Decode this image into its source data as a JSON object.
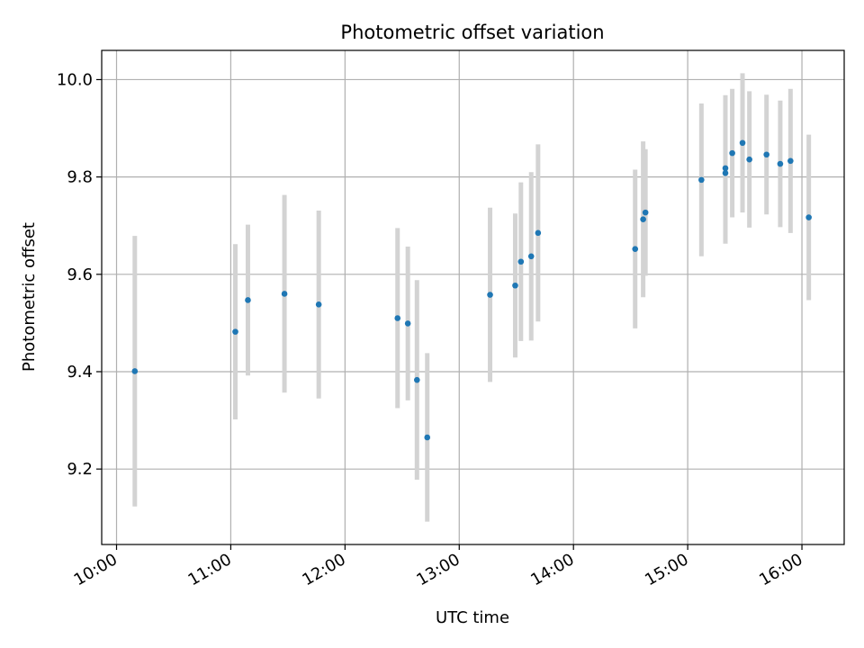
{
  "chart_data": {
    "type": "scatter",
    "title": "Photometric offset variation",
    "xlabel": "UTC time",
    "ylabel": "Photometric offset",
    "xlim_hours": [
      9.87,
      16.37
    ],
    "ylim": [
      9.045,
      10.06
    ],
    "x_ticks": [
      {
        "value": 10,
        "label": "10:00"
      },
      {
        "value": 11,
        "label": "11:00"
      },
      {
        "value": 12,
        "label": "12:00"
      },
      {
        "value": 13,
        "label": "13:00"
      },
      {
        "value": 14,
        "label": "14:00"
      },
      {
        "value": 15,
        "label": "15:00"
      },
      {
        "value": 16,
        "label": "16:00"
      }
    ],
    "y_ticks": [
      {
        "value": 9.2,
        "label": "9.2"
      },
      {
        "value": 9.4,
        "label": "9.4"
      },
      {
        "value": 9.6,
        "label": "9.6"
      },
      {
        "value": 9.8,
        "label": "9.8"
      },
      {
        "value": 10.0,
        "label": "10.0"
      }
    ],
    "grid": true,
    "point_color": "#1f77b4",
    "errorbar_color": "#d3d3d3",
    "points": [
      {
        "t": 10.16,
        "y": 9.401,
        "err": 0.278
      },
      {
        "t": 11.04,
        "y": 9.482,
        "err": 0.18
      },
      {
        "t": 11.15,
        "y": 9.547,
        "err": 0.155
      },
      {
        "t": 11.47,
        "y": 9.56,
        "err": 0.203
      },
      {
        "t": 11.77,
        "y": 9.538,
        "err": 0.193
      },
      {
        "t": 12.46,
        "y": 9.51,
        "err": 0.185
      },
      {
        "t": 12.55,
        "y": 9.499,
        "err": 0.158
      },
      {
        "t": 12.63,
        "y": 9.383,
        "err": 0.205
      },
      {
        "t": 12.72,
        "y": 9.265,
        "err": 0.173
      },
      {
        "t": 13.27,
        "y": 9.558,
        "err": 0.179
      },
      {
        "t": 13.49,
        "y": 9.577,
        "err": 0.148
      },
      {
        "t": 13.54,
        "y": 9.626,
        "err": 0.163
      },
      {
        "t": 13.63,
        "y": 9.637,
        "err": 0.173
      },
      {
        "t": 13.69,
        "y": 9.685,
        "err": 0.182
      },
      {
        "t": 14.54,
        "y": 9.652,
        "err": 0.163
      },
      {
        "t": 14.61,
        "y": 9.713,
        "err": 0.16
      },
      {
        "t": 14.63,
        "y": 9.727,
        "err": 0.13
      },
      {
        "t": 15.12,
        "y": 9.794,
        "err": 0.157
      },
      {
        "t": 15.33,
        "y": 9.808,
        "err": 0.145
      },
      {
        "t": 15.33,
        "y": 9.818,
        "err": 0.15
      },
      {
        "t": 15.39,
        "y": 9.849,
        "err": 0.132
      },
      {
        "t": 15.48,
        "y": 9.87,
        "err": 0.143
      },
      {
        "t": 15.54,
        "y": 9.836,
        "err": 0.14
      },
      {
        "t": 15.69,
        "y": 9.846,
        "err": 0.123
      },
      {
        "t": 15.81,
        "y": 9.827,
        "err": 0.13
      },
      {
        "t": 15.9,
        "y": 9.833,
        "err": 0.148
      },
      {
        "t": 16.06,
        "y": 9.717,
        "err": 0.17
      }
    ]
  }
}
